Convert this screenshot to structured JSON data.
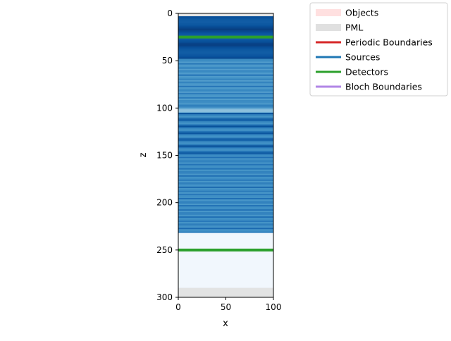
{
  "chart_data": {
    "type": "heatmap",
    "title": "",
    "xlabel": "x",
    "ylabel": "z",
    "xlim": [
      0,
      100
    ],
    "ylim": [
      300,
      0
    ],
    "x_ticks": [
      0,
      50,
      100
    ],
    "y_ticks": [
      0,
      50,
      100,
      150,
      200,
      250,
      300
    ],
    "y_axis_inverted": true,
    "grid": false,
    "colormap": "Blues",
    "pml_regions": [
      {
        "z_start": 0,
        "z_end": 3
      },
      {
        "z_start": 290,
        "z_end": 300
      }
    ],
    "field_profile": [
      {
        "z_start": 3,
        "z_end": 48,
        "intensity": 0.95,
        "pattern": "dense-fringes"
      },
      {
        "z_start": 48,
        "z_end": 95,
        "intensity": 0.75,
        "pattern": "fringes"
      },
      {
        "z_start": 95,
        "z_end": 105,
        "intensity": 0.55,
        "pattern": "soft-band"
      },
      {
        "z_start": 105,
        "z_end": 150,
        "intensity": 0.9,
        "pattern": "dark-bands"
      },
      {
        "z_start": 150,
        "z_end": 232,
        "intensity": 0.78,
        "pattern": "fringes"
      },
      {
        "z_start": 232,
        "z_end": 290,
        "intensity": 0.03,
        "pattern": "flat"
      }
    ],
    "detectors": [
      {
        "z": 25,
        "color": "#2ca02c"
      },
      {
        "z": 250,
        "color": "#2ca02c"
      }
    ],
    "legend": {
      "placement": "upper-right-outside",
      "entries": [
        {
          "label": "Objects",
          "color": "#ffe0e0",
          "kind": "patch"
        },
        {
          "label": "PML",
          "color": "#e0e0e0",
          "kind": "patch"
        },
        {
          "label": "Periodic Boundaries",
          "color": "#d62728",
          "kind": "line"
        },
        {
          "label": "Sources",
          "color": "#1f77b4",
          "kind": "line"
        },
        {
          "label": "Detectors",
          "color": "#2ca02c",
          "kind": "line"
        },
        {
          "label": "Bloch Boundaries",
          "color": "#b186e6",
          "kind": "line"
        }
      ]
    }
  }
}
